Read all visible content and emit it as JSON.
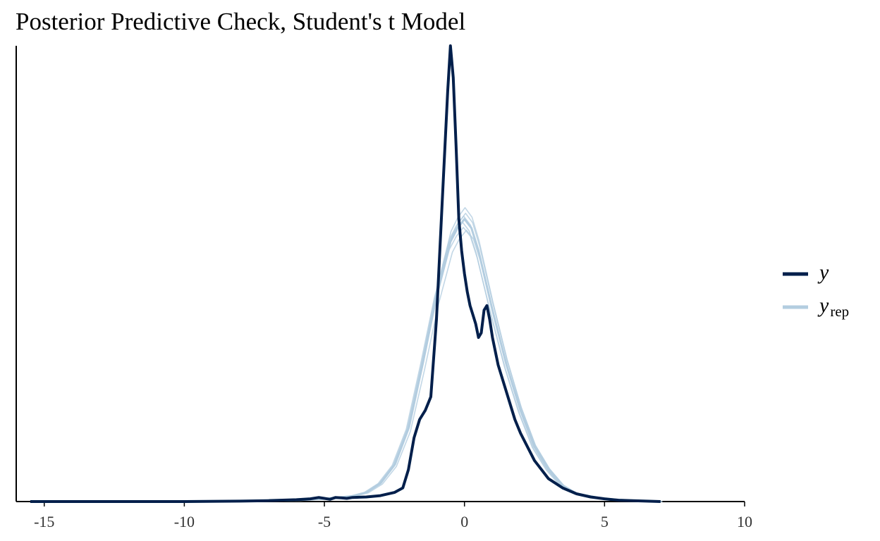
{
  "chart_data": {
    "type": "line",
    "title": "Posterior Predictive Check, Student's t Model",
    "xlabel": "",
    "ylabel": "",
    "xlim": [
      -16,
      10
    ],
    "ylim": [
      0,
      1.0
    ],
    "x_ticks": [
      -15,
      -10,
      -5,
      0,
      5,
      10
    ],
    "x_tick_labels": [
      "-15",
      "-10",
      "-5",
      "0",
      "5",
      "10"
    ],
    "y_axis_ticks_shown": false,
    "grid": false,
    "legend_position": "right",
    "colors": {
      "y": "#011f4b",
      "yrep": "#b3cde0"
    },
    "series": [
      {
        "name": "y",
        "label_main": "y",
        "label_sub": "",
        "color": "#011f4b",
        "x": [
          -15.5,
          -10,
          -8,
          -7,
          -6,
          -5.5,
          -5.2,
          -5.0,
          -4.8,
          -4.6,
          -4.4,
          -4.2,
          -4.0,
          -3.5,
          -3.0,
          -2.5,
          -2.2,
          -2.0,
          -1.8,
          -1.6,
          -1.4,
          -1.2,
          -1.0,
          -0.8,
          -0.6,
          -0.5,
          -0.4,
          -0.3,
          -0.2,
          -0.1,
          0.0,
          0.1,
          0.2,
          0.3,
          0.4,
          0.5,
          0.6,
          0.7,
          0.8,
          0.9,
          1.0,
          1.2,
          1.5,
          1.8,
          2.0,
          2.5,
          3.0,
          3.5,
          4.0,
          4.5,
          5.0,
          5.5,
          6.0,
          6.5,
          7.0
        ],
        "y": [
          0.0,
          0.0,
          0.001,
          0.002,
          0.004,
          0.006,
          0.009,
          0.007,
          0.005,
          0.009,
          0.008,
          0.007,
          0.009,
          0.01,
          0.013,
          0.02,
          0.03,
          0.07,
          0.14,
          0.18,
          0.2,
          0.23,
          0.4,
          0.65,
          0.9,
          1.0,
          0.93,
          0.78,
          0.62,
          0.55,
          0.5,
          0.46,
          0.43,
          0.41,
          0.39,
          0.36,
          0.37,
          0.42,
          0.43,
          0.4,
          0.36,
          0.3,
          0.24,
          0.18,
          0.15,
          0.09,
          0.05,
          0.03,
          0.017,
          0.01,
          0.006,
          0.003,
          0.002,
          0.001,
          0.0
        ]
      },
      {
        "name": "yrep",
        "label_main": "y",
        "label_sub": "rep",
        "color": "#b3cde0",
        "x": [
          -8,
          -6,
          -5,
          -4.5,
          -4,
          -3.5,
          -3.0,
          -2.5,
          -2.0,
          -1.5,
          -1.0,
          -0.5,
          -0.25,
          0.0,
          0.25,
          0.5,
          1.0,
          1.5,
          2.0,
          2.5,
          3.0,
          3.5,
          4.0,
          5.0,
          6.0,
          7.0
        ],
        "y": [
          0.001,
          0.003,
          0.006,
          0.009,
          0.012,
          0.02,
          0.04,
          0.08,
          0.16,
          0.3,
          0.45,
          0.57,
          0.6,
          0.62,
          0.6,
          0.55,
          0.42,
          0.3,
          0.2,
          0.12,
          0.07,
          0.035,
          0.017,
          0.006,
          0.002,
          0.0
        ]
      }
    ]
  }
}
